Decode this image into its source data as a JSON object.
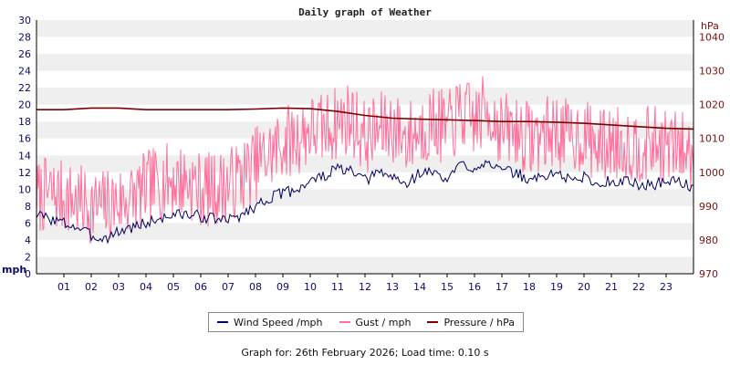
{
  "chart_data": {
    "type": "line",
    "title": "Daily graph of Weather",
    "left_axis": {
      "unit": "mph",
      "range": [
        0,
        30
      ],
      "ticks": [
        0,
        2,
        4,
        6,
        8,
        10,
        12,
        14,
        16,
        18,
        20,
        22,
        24,
        26,
        28,
        30
      ]
    },
    "right_axis": {
      "unit": "hPa",
      "range": [
        970,
        1045
      ],
      "ticks": [
        970,
        980,
        990,
        1000,
        1010,
        1020,
        1030,
        1040
      ]
    },
    "x_axis": {
      "range": [
        0,
        24
      ],
      "tick_labels": [
        "01",
        "02",
        "03",
        "04",
        "05",
        "06",
        "07",
        "08",
        "09",
        "10",
        "11",
        "12",
        "13",
        "14",
        "15",
        "16",
        "17",
        "18",
        "19",
        "20",
        "21",
        "22",
        "23"
      ]
    },
    "grid": "horizontal bands",
    "legend_position": "bottom",
    "series": [
      {
        "name": "Wind Speed /mph",
        "color": "#000066",
        "axis": "left",
        "x": [
          0,
          0.5,
          1,
          1.5,
          2,
          2.5,
          3,
          3.5,
          4,
          4.5,
          5,
          5.5,
          6,
          6.5,
          7,
          7.5,
          8,
          8.5,
          9,
          9.5,
          10,
          10.5,
          11,
          11.5,
          12,
          12.5,
          13,
          13.5,
          14,
          14.5,
          15,
          15.5,
          16,
          16.5,
          17,
          17.5,
          18,
          18.5,
          19,
          19.5,
          20,
          20.5,
          21,
          21.5,
          22,
          22.5,
          23,
          23.5,
          24
        ],
        "values": [
          7,
          6.5,
          6,
          5.5,
          4.5,
          4.2,
          5,
          5.5,
          6,
          6.5,
          7,
          7,
          6.8,
          6.5,
          6.3,
          7,
          8,
          9,
          9.5,
          10,
          11,
          11.5,
          12.5,
          12,
          11,
          12,
          11.5,
          10.5,
          12,
          12,
          11,
          13,
          12.5,
          13.5,
          12,
          12,
          11,
          11.5,
          12,
          11,
          11.5,
          10.5,
          11,
          11,
          10.5,
          10.5,
          11,
          11,
          10
        ]
      },
      {
        "name": "Gust / mph",
        "color": "#ff6f9a",
        "axis": "left",
        "x": [
          0,
          0.5,
          1,
          1.5,
          2,
          2.5,
          3,
          3.5,
          4,
          4.5,
          5,
          5.5,
          6,
          6.5,
          7,
          7.5,
          8,
          8.5,
          9,
          9.5,
          10,
          10.5,
          11,
          11.5,
          12,
          12.5,
          13,
          13.5,
          14,
          14.5,
          15,
          15.5,
          16,
          16.5,
          17,
          17.5,
          18,
          18.5,
          19,
          19.5,
          20,
          20.5,
          21,
          21.5,
          22,
          22.5,
          23,
          23.5,
          24
        ],
        "values": [
          9,
          9.5,
          9,
          8.5,
          8,
          8,
          8.5,
          9,
          10,
          11,
          11,
          11,
          10,
          10,
          10.5,
          11.5,
          13,
          14,
          15.5,
          16,
          17,
          17,
          18,
          18.5,
          16,
          17,
          17.5,
          16,
          17,
          18,
          17,
          19,
          18,
          19.5,
          17,
          17,
          16,
          16.5,
          17,
          16,
          16.5,
          15,
          15.5,
          15.5,
          15,
          15.5,
          15,
          15,
          14
        ]
      },
      {
        "name": "Pressure / hPa",
        "color": "#7a0000",
        "axis": "right",
        "x": [
          0,
          1,
          2,
          3,
          4,
          5,
          6,
          7,
          8,
          9,
          10,
          11,
          12,
          13,
          14,
          15,
          16,
          17,
          18,
          19,
          20,
          21,
          22,
          23,
          24
        ],
        "values": [
          1018.5,
          1018.5,
          1019,
          1019,
          1018.5,
          1018.5,
          1018.5,
          1018.5,
          1018.7,
          1019,
          1018.8,
          1018,
          1016.8,
          1016,
          1015.7,
          1015.5,
          1015.3,
          1015,
          1015,
          1014.8,
          1014.5,
          1014,
          1013.5,
          1013,
          1012.8
        ]
      }
    ]
  },
  "footer": "Graph for: 26th February 2026; Load time: 0.10 s"
}
